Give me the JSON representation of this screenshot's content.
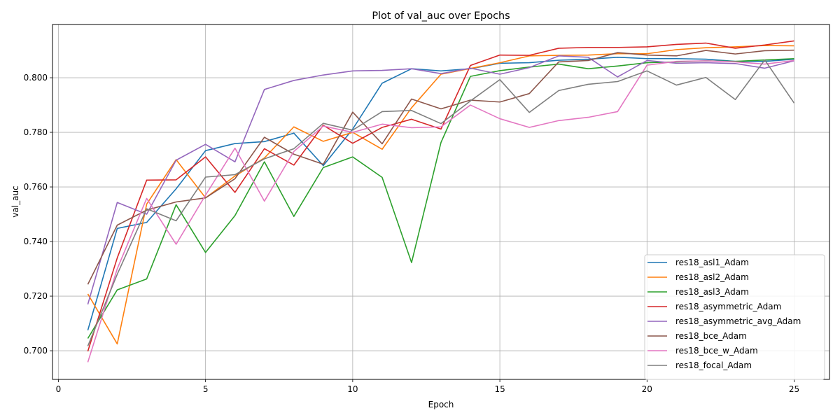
{
  "chart_data": {
    "type": "line",
    "title": "Plot of val_auc over Epochs",
    "xlabel": "Epoch",
    "ylabel": "val_auc",
    "xlim": [
      -0.2,
      26.2
    ],
    "ylim": [
      0.6895,
      0.8195
    ],
    "xticks": [
      0,
      5,
      10,
      15,
      20,
      25
    ],
    "yticks": [
      0.7,
      0.72,
      0.74,
      0.76,
      0.78,
      0.8
    ],
    "xtick_labels": [
      "0",
      "5",
      "10",
      "15",
      "20",
      "25"
    ],
    "ytick_labels": [
      "0.700",
      "0.720",
      "0.740",
      "0.760",
      "0.780",
      "0.800"
    ],
    "grid": true,
    "legend_position": "lower-right",
    "x": [
      1,
      2,
      3,
      4,
      5,
      6,
      7,
      8,
      9,
      10,
      11,
      12,
      13,
      14,
      15,
      16,
      17,
      18,
      19,
      20,
      21,
      22,
      23,
      24,
      25
    ],
    "series": [
      {
        "name": "res18_asl1_Adam",
        "color": "#1f77b4",
        "values": [
          0.7075,
          0.7448,
          0.747,
          0.7593,
          0.7733,
          0.7759,
          0.7766,
          0.7797,
          0.7678,
          0.7812,
          0.798,
          0.8033,
          0.8025,
          0.8033,
          0.8053,
          0.8055,
          0.8064,
          0.8068,
          0.8075,
          0.807,
          0.807,
          0.8068,
          0.806,
          0.806,
          0.8068
        ]
      },
      {
        "name": "res18_asl2_Adam",
        "color": "#ff7f0e",
        "values": [
          0.7208,
          0.7025,
          0.7537,
          0.77,
          0.756,
          0.764,
          0.7706,
          0.782,
          0.7767,
          0.78,
          0.7738,
          0.789,
          0.8013,
          0.8034,
          0.8055,
          0.808,
          0.8082,
          0.8083,
          0.8088,
          0.8088,
          0.8103,
          0.811,
          0.8113,
          0.8118,
          0.8117
        ]
      },
      {
        "name": "res18_asl3_Adam",
        "color": "#2ca02c",
        "values": [
          0.7045,
          0.7223,
          0.7263,
          0.7535,
          0.736,
          0.7495,
          0.7692,
          0.7492,
          0.7671,
          0.771,
          0.7635,
          0.7323,
          0.7763,
          0.8005,
          0.8026,
          0.8039,
          0.805,
          0.8033,
          0.8043,
          0.8055,
          0.8058,
          0.8062,
          0.806,
          0.8065,
          0.807
        ]
      },
      {
        "name": "res18_asymmetric_Adam",
        "color": "#d62728",
        "values": [
          0.6998,
          0.734,
          0.7625,
          0.7626,
          0.771,
          0.758,
          0.774,
          0.768,
          0.7826,
          0.776,
          0.7818,
          0.7848,
          0.7812,
          0.8045,
          0.8083,
          0.8082,
          0.8108,
          0.8111,
          0.8111,
          0.8113,
          0.8122,
          0.8127,
          0.8108,
          0.812,
          0.8135
        ]
      },
      {
        "name": "res18_asymmetric_avg_Adam",
        "color": "#9467bd",
        "values": [
          0.717,
          0.7543,
          0.75,
          0.7698,
          0.7756,
          0.7692,
          0.7957,
          0.799,
          0.801,
          0.8025,
          0.8027,
          0.8033,
          0.8015,
          0.8035,
          0.8013,
          0.8037,
          0.808,
          0.8075,
          0.8003,
          0.8063,
          0.8053,
          0.8055,
          0.8052,
          0.8035,
          0.8062
        ]
      },
      {
        "name": "res18_bce_Adam",
        "color": "#8c564b",
        "values": [
          0.7243,
          0.746,
          0.7515,
          0.7545,
          0.756,
          0.763,
          0.7782,
          0.772,
          0.7683,
          0.7874,
          0.7758,
          0.7922,
          0.7886,
          0.7918,
          0.7911,
          0.7942,
          0.8058,
          0.8063,
          0.8092,
          0.8083,
          0.808,
          0.81,
          0.8087,
          0.8099,
          0.8101
        ]
      },
      {
        "name": "res18_bce_w_Adam",
        "color": "#e377c2",
        "values": [
          0.6958,
          0.73,
          0.7558,
          0.739,
          0.757,
          0.7742,
          0.7548,
          0.773,
          0.7823,
          0.78,
          0.783,
          0.7817,
          0.782,
          0.79,
          0.785,
          0.7818,
          0.7843,
          0.7855,
          0.7876,
          0.8046,
          0.806,
          0.8062,
          0.8058,
          0.805,
          0.8063
        ]
      },
      {
        "name": "res18_focal_Adam",
        "color": "#7f7f7f",
        "values": [
          0.7017,
          0.728,
          0.752,
          0.7476,
          0.7636,
          0.7645,
          0.7703,
          0.774,
          0.7833,
          0.7808,
          0.7876,
          0.788,
          0.7832,
          0.7915,
          0.7993,
          0.7873,
          0.7953,
          0.7976,
          0.7986,
          0.8025,
          0.7973,
          0.8001,
          0.792,
          0.8065,
          0.7907
        ]
      }
    ]
  }
}
